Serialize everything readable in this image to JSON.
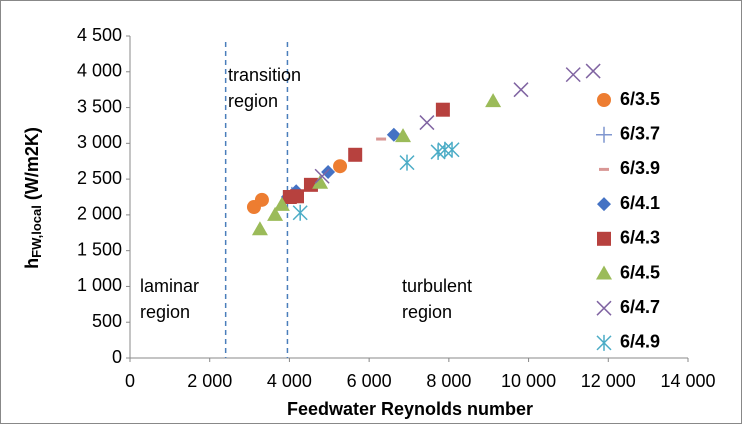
{
  "chart_data": {
    "type": "scatter",
    "xlabel": "Feedwater Reynolds number",
    "ylabel": {
      "main": "h",
      "sub": "FW,local",
      "unit": " (W/m2K)"
    },
    "xlim": [
      0,
      14000
    ],
    "xticks": [
      0,
      {
        "value": 2000,
        "label": "2 000"
      },
      {
        "value": 4000,
        "label": "4 000"
      },
      {
        "value": 6000,
        "label": "6 000"
      },
      {
        "value": 8000,
        "label": "8 000"
      },
      {
        "value": 10000,
        "label": "10 000"
      },
      {
        "value": 12000,
        "label": "12 000"
      },
      {
        "value": 14000,
        "label": "14 000"
      }
    ],
    "ylim": [
      0,
      4500
    ],
    "yticks": [
      0,
      500,
      {
        "value": 1000,
        "label": "1 000"
      },
      {
        "value": 1500,
        "label": "1 500"
      },
      {
        "value": 2000,
        "label": "2 000"
      },
      {
        "value": 2500,
        "label": "2 500"
      },
      {
        "value": 3000,
        "label": "3 000"
      },
      {
        "value": 3500,
        "label": "3 500"
      },
      {
        "value": 4000,
        "label": "4 000"
      },
      {
        "value": 4500,
        "label": "4 500"
      }
    ],
    "vlines": [
      2400,
      3950
    ],
    "annotations": [
      {
        "lines": [
          "transition",
          "region"
        ]
      },
      {
        "lines": [
          "laminar",
          "region"
        ]
      },
      {
        "lines": [
          "turbulent",
          "region"
        ]
      }
    ],
    "legend": "right",
    "series": [
      {
        "name": "6/3.5",
        "color": "#ed7d31",
        "marker": "circle",
        "x": [
          3110,
          3310,
          5270
        ],
        "values": [
          2110,
          2210,
          2680
        ]
      },
      {
        "name": "6/3.7",
        "color": "#7f96cf",
        "marker": "plus",
        "x": [
          4060
        ],
        "values": [
          2280
        ]
      },
      {
        "name": "6/3.9",
        "color": "#d99795",
        "marker": "dash",
        "x": [
          6300
        ],
        "values": [
          3060
        ]
      },
      {
        "name": "6/4.1",
        "color": "#4472c4",
        "marker": "diamond",
        "x": [
          3960,
          4170,
          4970,
          6620
        ],
        "values": [
          2250,
          2330,
          2600,
          3120
        ]
      },
      {
        "name": "6/4.3",
        "color": "#b7413e",
        "marker": "square",
        "x": [
          4010,
          4190,
          4540,
          5650,
          7850
        ],
        "values": [
          2250,
          2260,
          2420,
          2840,
          3470
        ]
      },
      {
        "name": "6/4.5",
        "color": "#9bbb59",
        "marker": "triangle",
        "x": [
          3260,
          3640,
          3810,
          4770,
          6850,
          9110
        ],
        "values": [
          1800,
          2000,
          2140,
          2450,
          3100,
          3590
        ]
      },
      {
        "name": "6/4.7",
        "color": "#8064a2",
        "marker": "x",
        "x": [
          4820,
          7450,
          9810,
          11120,
          11620
        ],
        "values": [
          2540,
          3290,
          3750,
          3960,
          4010
        ]
      },
      {
        "name": "6/4.9",
        "color": "#4bacc6",
        "marker": "star",
        "x": [
          4270,
          6950,
          7730,
          7900,
          8080
        ],
        "values": [
          2030,
          2730,
          2880,
          2910,
          2910
        ]
      }
    ]
  }
}
